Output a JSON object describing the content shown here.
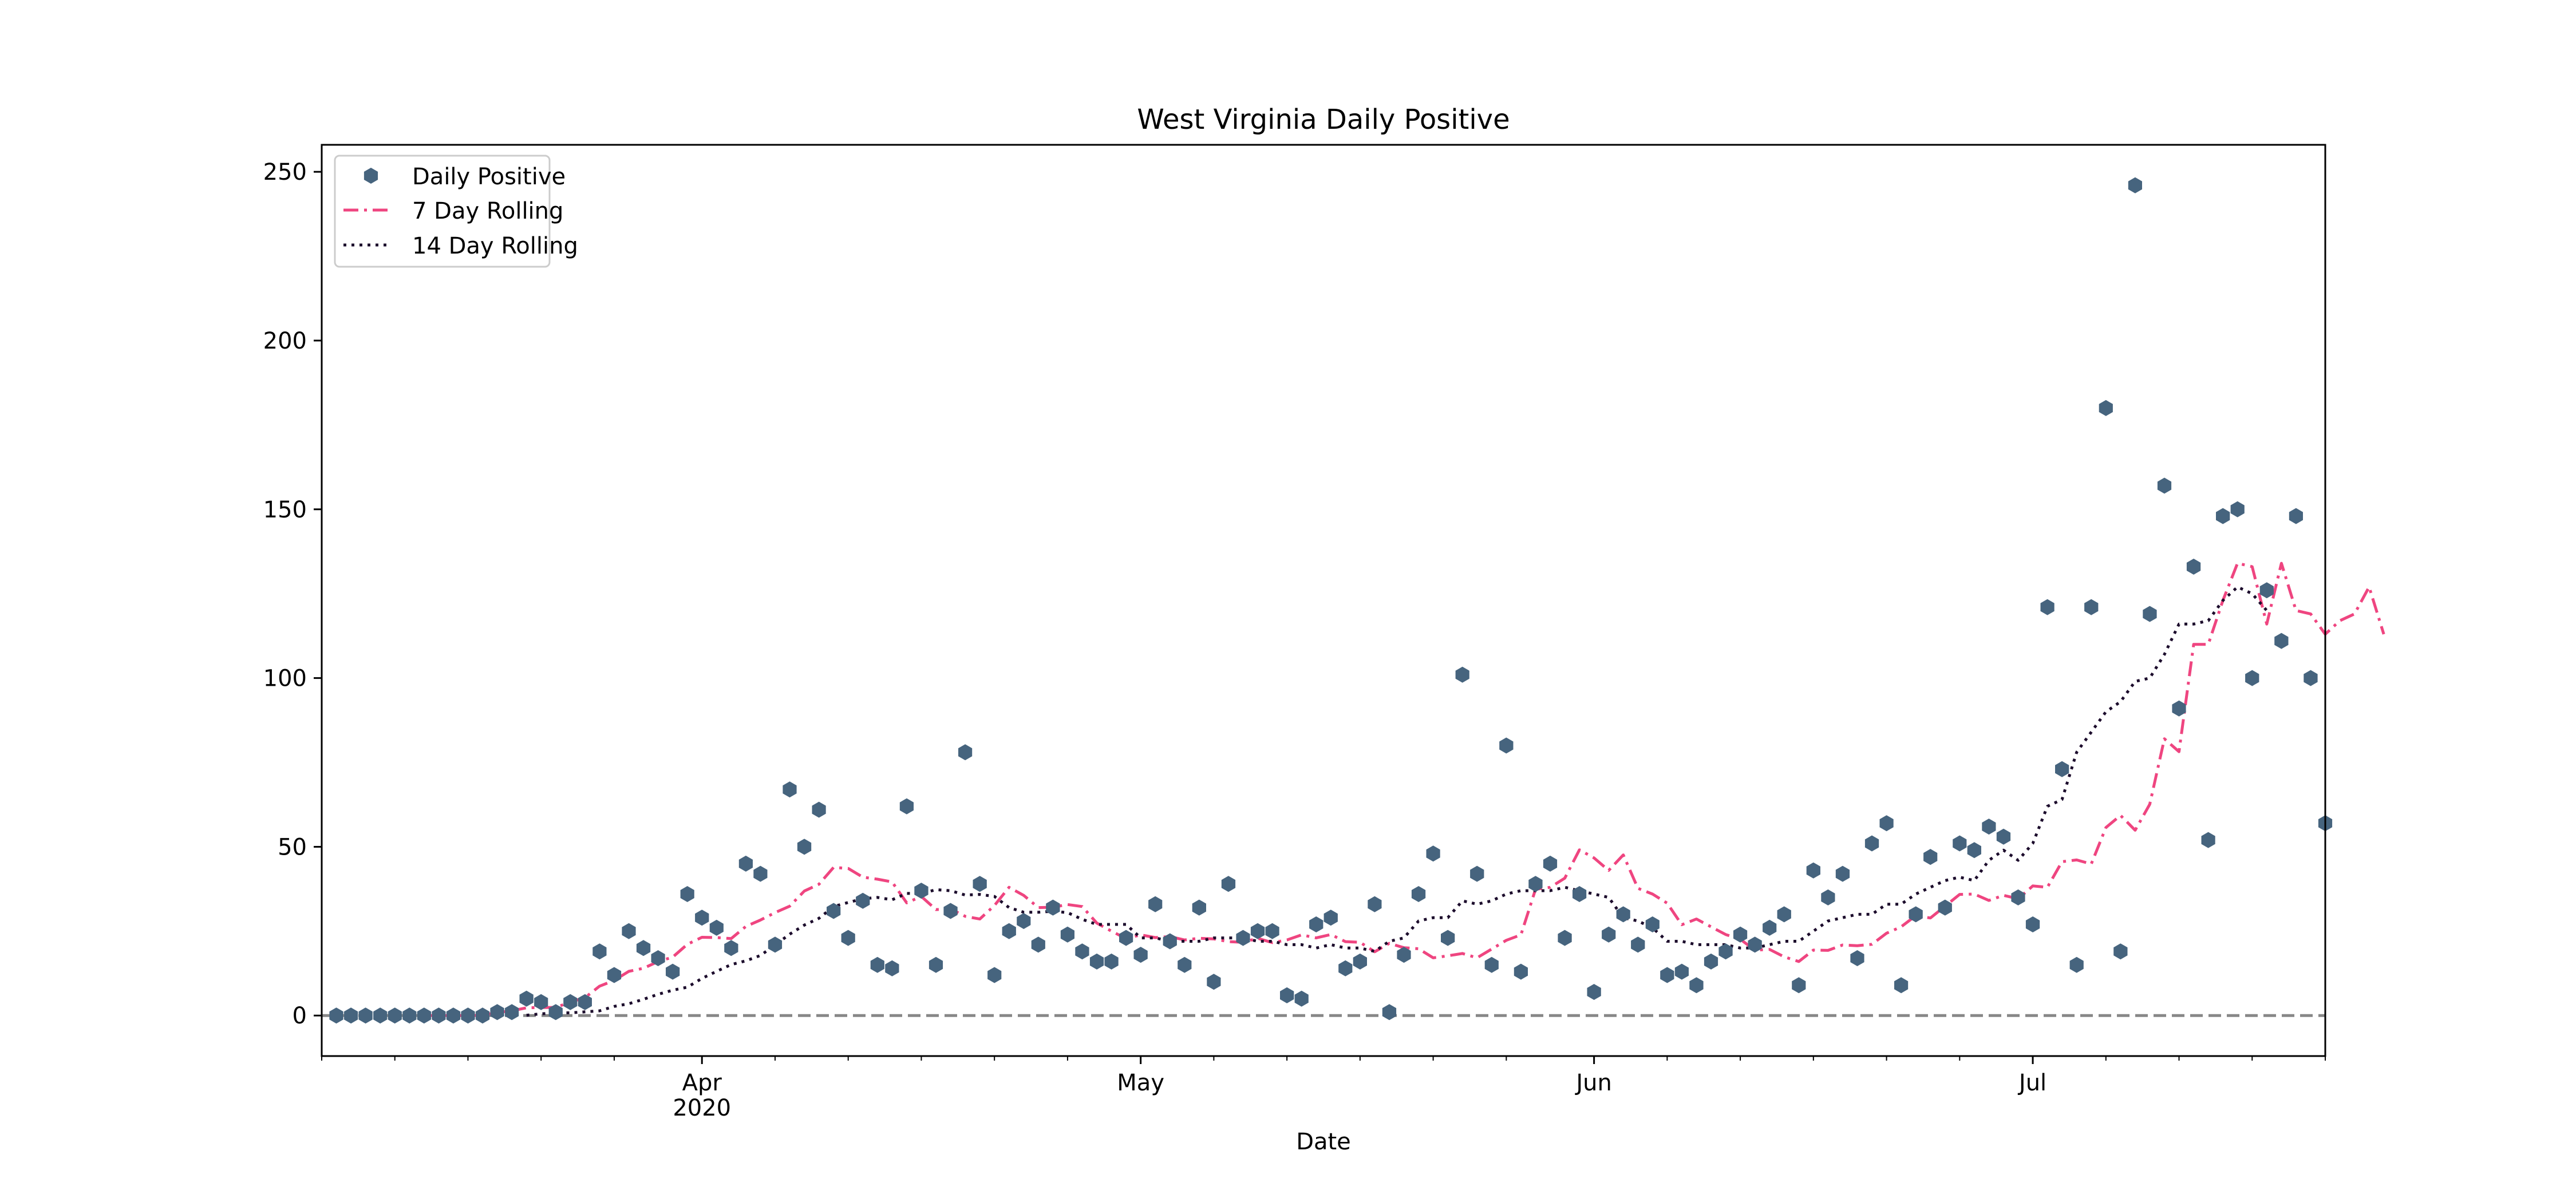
{
  "chart_data": {
    "type": "scatter",
    "title": "West Virginia Daily Positive",
    "xlabel": "Date",
    "ylabel": "",
    "x_start": "2020-03-06",
    "x_end": "2020-07-21",
    "ylim": [
      -12,
      258
    ],
    "yticks": [
      0,
      50,
      100,
      150,
      200,
      250
    ],
    "xticks": [
      {
        "date": "2020-04-01",
        "label": "Apr",
        "sublabel": "2020"
      },
      {
        "date": "2020-05-01",
        "label": "May",
        "sublabel": ""
      },
      {
        "date": "2020-06-01",
        "label": "Jun",
        "sublabel": ""
      },
      {
        "date": "2020-07-01",
        "label": "Jul",
        "sublabel": ""
      }
    ],
    "legend_position": "upper-left",
    "baseline": {
      "y": 0,
      "color": "#888888",
      "style": "dashed"
    },
    "colors": {
      "daily": "#46647e",
      "rolling7": "#ef4580",
      "rolling14": "#1c0c2c"
    },
    "series": [
      {
        "name": "Daily Positive",
        "kind": "points",
        "start_date": "2020-03-07",
        "values": [
          0,
          0,
          0,
          0,
          0,
          0,
          0,
          0,
          0,
          0,
          0,
          1,
          1,
          5,
          4,
          1,
          4,
          4,
          19,
          12,
          25,
          20,
          17,
          13,
          36,
          29,
          26,
          20,
          45,
          42,
          21,
          67,
          50,
          61,
          31,
          23,
          34,
          15,
          14,
          62,
          37,
          15,
          31,
          78,
          39,
          12,
          25,
          28,
          21,
          32,
          24,
          19,
          16,
          16,
          23,
          18,
          33,
          22,
          15,
          32,
          10,
          39,
          23,
          25,
          25,
          6,
          5,
          27,
          29,
          14,
          16,
          33,
          1,
          18,
          36,
          48,
          23,
          101,
          42,
          15,
          80,
          13,
          39,
          45,
          23,
          36,
          7,
          24,
          30,
          21,
          27,
          12,
          13,
          9,
          16,
          19,
          24,
          21,
          26,
          30,
          9,
          43,
          35,
          42,
          17,
          51,
          57,
          9,
          30,
          47,
          32,
          51,
          49,
          56,
          53,
          35,
          27,
          121,
          73,
          15,
          121,
          180,
          19,
          246,
          119,
          157,
          91,
          133,
          52,
          148,
          150,
          100,
          126,
          111,
          148,
          100,
          57
        ]
      },
      {
        "name": "7 Day Rolling",
        "kind": "dashdot",
        "start_date": "2020-03-13",
        "values": [
          0,
          0,
          0,
          0,
          0.1,
          0.9,
          1.4,
          2.3,
          2.4,
          2.4,
          4.0,
          5.3,
          8.7,
          10.4,
          13.1,
          14.0,
          16.0,
          17.3,
          21.1,
          23.2,
          23.1,
          22.8,
          26.4,
          28.3,
          30.5,
          32.4,
          36.9,
          38.9,
          43.9,
          43.6,
          41.0,
          40.4,
          39.6,
          33.4,
          35.3,
          31.4,
          31.6,
          29.4,
          28.6,
          32.6,
          38.0,
          35.6,
          32.0,
          32.1,
          32.9,
          32.3,
          27.4,
          25.0,
          22.8,
          23.9,
          23.1,
          23.4,
          22.4,
          22.9,
          22.7,
          21.9,
          21.7,
          22.9,
          21.6,
          22.4,
          23.9,
          23.0,
          24.0,
          21.9,
          21.7,
          18.9,
          21.4,
          20.1,
          19.8,
          17.1,
          17.7,
          18.4,
          17.1,
          19.7,
          22.3,
          23.9,
          37.4,
          38.0,
          40.7,
          49.1,
          46.7,
          43.0,
          47.6,
          37.7,
          36.0,
          33.3,
          26.9,
          28.6,
          26.3,
          24.0,
          22.6,
          19.4,
          19.6,
          17.4,
          16.0,
          19.4,
          19.3,
          20.9,
          20.7,
          21.1,
          24.4,
          26.3,
          29.6,
          28.9,
          32.4,
          35.9,
          36.0,
          34.1,
          35.6,
          34.6,
          38.4,
          38.0,
          45.6,
          46.1,
          44.9,
          55.7,
          59.3,
          54.9,
          62.6,
          82.0,
          78.2,
          110.0,
          110.0,
          123.0,
          134.0,
          133.0,
          116.0,
          134.0,
          120.0,
          119.0,
          113.0,
          117.0,
          119.0,
          127.0,
          113.0
        ]
      },
      {
        "name": "14 Day Rolling",
        "kind": "dotted",
        "start_date": "2020-03-20",
        "values": [
          0.1,
          0.5,
          0.8,
          0.8,
          1.1,
          1.4,
          2.7,
          3.5,
          4.8,
          6.3,
          7.5,
          8.4,
          11.0,
          13.1,
          15.1,
          16.2,
          17.8,
          20.9,
          24.1,
          26.8,
          28.8,
          32.3,
          33.5,
          34.6,
          35.0,
          34.3,
          36.2,
          36.1,
          37.3,
          37.0,
          35.7,
          35.9,
          35.3,
          32.0,
          30.6,
          30.6,
          30.9,
          30.5,
          28.5,
          27.0,
          27.0,
          27.0,
          23.0,
          23.0,
          22.0,
          22.0,
          22.0,
          23.0,
          23.0,
          23.0,
          22.0,
          22.0,
          21.0,
          21.0,
          20.0,
          21.0,
          20.0,
          20.0,
          19.0,
          22.0,
          23.0,
          28.0,
          29.0,
          29.0,
          34.0,
          33.0,
          34.0,
          36.0,
          37.0,
          37.0,
          37.0,
          38.0,
          37.0,
          36.0,
          35.0,
          29.0,
          28.0,
          26.0,
          22.0,
          22.0,
          21.0,
          21.0,
          21.0,
          20.0,
          20.0,
          21.0,
          22.0,
          22.0,
          25.0,
          28.0,
          29.0,
          30.0,
          30.0,
          33.0,
          33.0,
          36.0,
          38.0,
          40.0,
          41.0,
          40.0,
          46.0,
          49.0,
          46.0,
          51.0,
          62.0,
          64.0,
          78.0,
          84.0,
          90.0,
          93.0,
          99.0,
          100.0,
          107.0,
          116.0,
          116.0,
          117.0,
          123.0,
          127.0,
          125.0,
          120.0
        ]
      }
    ]
  }
}
